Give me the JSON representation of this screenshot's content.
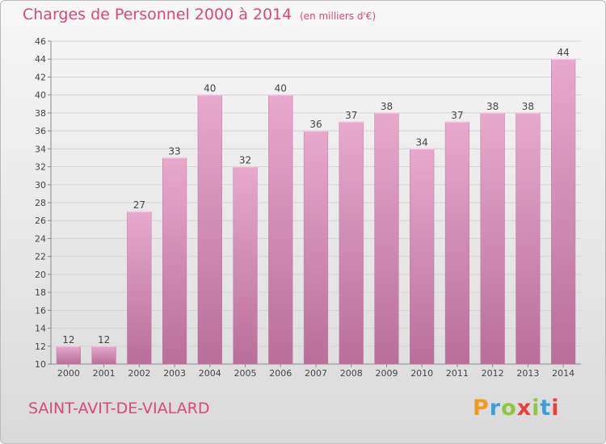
{
  "header": {
    "title": "Charges de Personnel 2000 à 2014",
    "subtitle": "(en milliers d'€)"
  },
  "footer": {
    "commune": "SAINT-AVIT-DE-VIALARD",
    "logo": [
      "P",
      "r",
      "o",
      "x",
      "i",
      "t",
      "i"
    ],
    "logo_colors": [
      "#f39a1d",
      "#3e9edb",
      "#8dc63f",
      "#e8413c",
      "#8dc63f",
      "#3e9edb",
      "#e8413c"
    ]
  },
  "chart_data": {
    "type": "bar",
    "title": "Charges de Personnel 2000 à 2014",
    "subtitle": "(en milliers d'€)",
    "categories": [
      "2000",
      "2001",
      "2002",
      "2003",
      "2004",
      "2005",
      "2006",
      "2007",
      "2008",
      "2009",
      "2010",
      "2011",
      "2012",
      "2013",
      "2014"
    ],
    "values": [
      12,
      12,
      27,
      33,
      40,
      32,
      40,
      36,
      37,
      38,
      34,
      37,
      38,
      38,
      44
    ],
    "ylim": [
      10,
      46
    ],
    "yticks": [
      10,
      12,
      14,
      16,
      18,
      20,
      22,
      24,
      26,
      28,
      30,
      32,
      34,
      36,
      38,
      40,
      42,
      44,
      46
    ],
    "grid": true,
    "bar_color": "#d98ab5",
    "bar_color_top": "#e7a9cc",
    "bar_color_bottom": "#b86f99"
  }
}
